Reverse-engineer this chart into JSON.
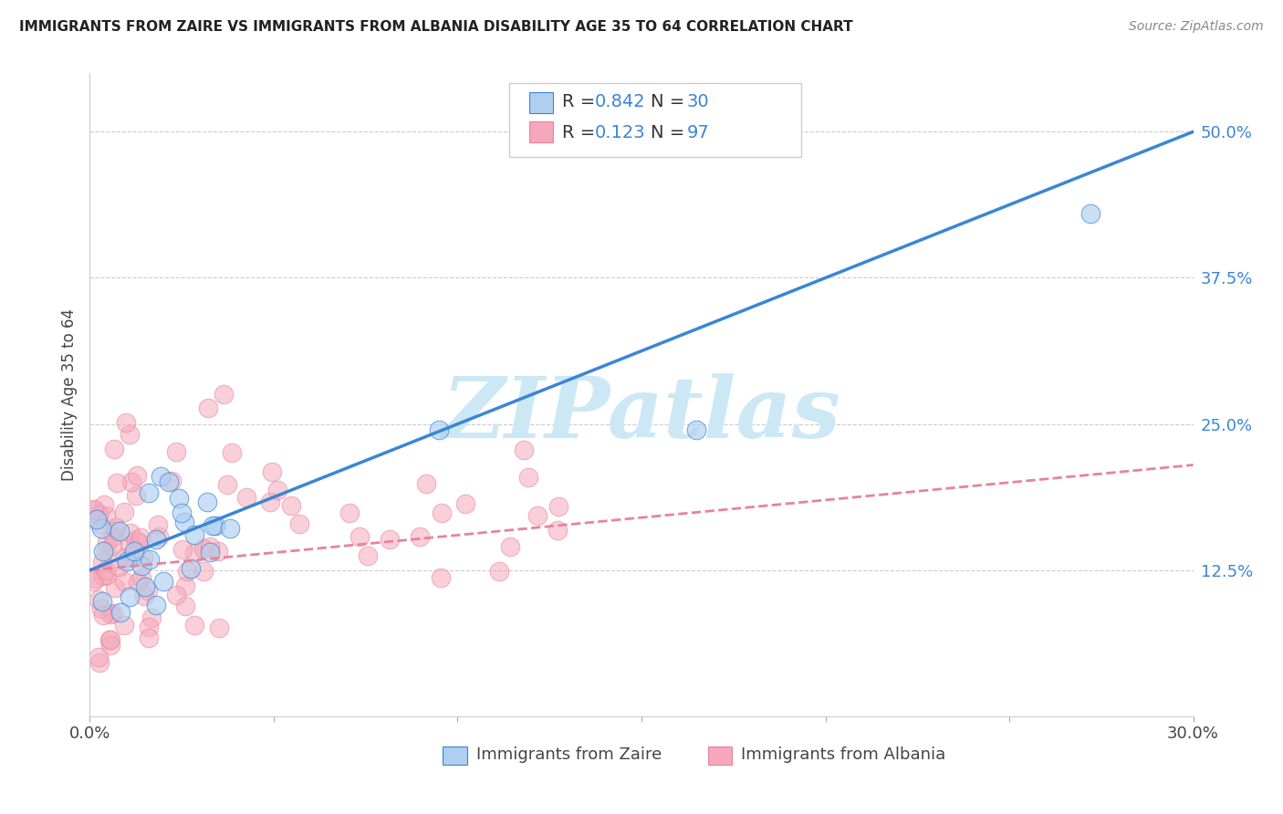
{
  "title": "IMMIGRANTS FROM ZAIRE VS IMMIGRANTS FROM ALBANIA DISABILITY AGE 35 TO 64 CORRELATION CHART",
  "source": "Source: ZipAtlas.com",
  "ylabel": "Disability Age 35 to 64",
  "xlim": [
    0.0,
    0.3
  ],
  "ylim": [
    0.0,
    0.55
  ],
  "zaire_R": 0.842,
  "zaire_N": 30,
  "albania_R": 0.123,
  "albania_N": 97,
  "zaire_color": "#aecff0",
  "albania_color": "#f5a8bb",
  "zaire_line_color": "#3a86d4",
  "albania_line_color": "#e8839a",
  "watermark": "ZIPatlas",
  "watermark_color": "#cde8f5",
  "legend_label_zaire": "Immigrants from Zaire",
  "legend_label_albania": "Immigrants from Albania",
  "background_color": "#ffffff",
  "grid_color": "#cccccc",
  "blue_text_color": "#3a86d4",
  "zaire_line_intercept": 0.125,
  "zaire_line_slope": 1.25,
  "albania_line_intercept": 0.125,
  "albania_line_slope": 0.3
}
